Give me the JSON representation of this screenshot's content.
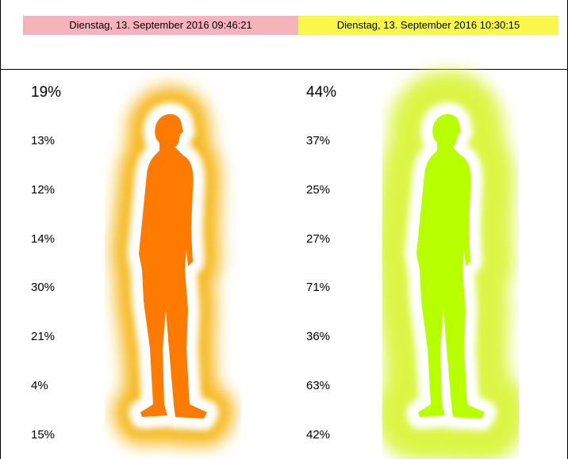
{
  "header": {
    "timestamps": [
      "Dienstag, 13. September 2016 09:46:21",
      "Dienstag, 13. September 2016 10:30:15"
    ]
  },
  "panels": [
    {
      "percentages": [
        "19%",
        "13%",
        "12%",
        "14%",
        "30%",
        "21%",
        "4%",
        "15%"
      ]
    },
    {
      "percentages": [
        "44%",
        "37%",
        "25%",
        "27%",
        "71%",
        "36%",
        "63%",
        "42%"
      ]
    }
  ]
}
